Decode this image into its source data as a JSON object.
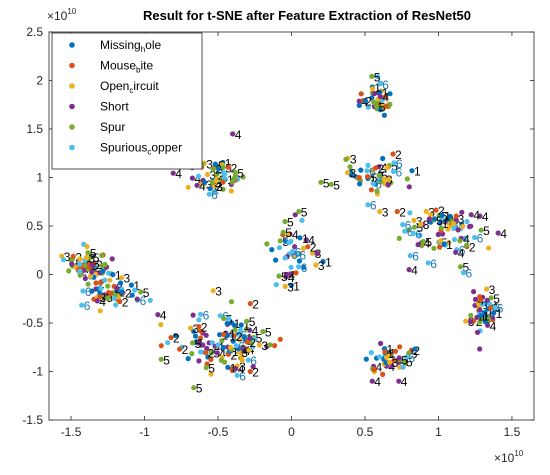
{
  "chart_data": {
    "type": "scatter",
    "title": "Result for t-SNE after Feature Extraction of ResNet50",
    "xlabel": "",
    "ylabel": "",
    "x_exponent": "×10",
    "x_exponent_power": "10",
    "y_exponent": "×10",
    "y_exponent_power": "10",
    "xlim": [
      -1.65,
      1.65
    ],
    "ylim": [
      -1.5,
      2.5
    ],
    "xticks": [
      -1.5,
      -1,
      -0.5,
      0,
      0.5,
      1,
      1.5
    ],
    "xtick_labels": [
      "-1.5",
      "-1",
      "-0.5",
      "0",
      "0.5",
      "1",
      "1.5"
    ],
    "yticks": [
      -1.5,
      -1,
      -0.5,
      0,
      0.5,
      1,
      1.5,
      2,
      2.5
    ],
    "ytick_labels": [
      "-1.5",
      "-1",
      "-0.5",
      "0",
      "0.5",
      "1",
      "1.5",
      "2",
      "2.5"
    ],
    "grid": false,
    "legend_position": "top-left",
    "series": [
      {
        "name_main": "Missing",
        "name_sub": "h",
        "name_rest": "ole",
        "color": "#0072BD",
        "label": "1"
      },
      {
        "name_main": "Mouse",
        "name_sub": "b",
        "name_rest": "ite",
        "color": "#D95319",
        "label": "2"
      },
      {
        "name_main": "Open",
        "name_sub": "c",
        "name_rest": "ircuit",
        "color": "#EDB120",
        "label": "3"
      },
      {
        "name_main": "Short",
        "name_sub": "",
        "name_rest": "",
        "color": "#7E2F8E",
        "label": "4"
      },
      {
        "name_main": "Spur",
        "name_sub": "",
        "name_rest": "",
        "color": "#77AC30",
        "label": "5"
      },
      {
        "name_main": "Spurious",
        "name_sub": "c",
        "name_rest": "opper",
        "color": "#4DBEEE",
        "label": "6"
      }
    ],
    "clusters": [
      {
        "cx": -1.37,
        "cy": 0.1,
        "sx": 0.08,
        "sy": 0.08,
        "n": 60
      },
      {
        "cx": -1.22,
        "cy": -0.18,
        "sx": 0.09,
        "sy": 0.08,
        "n": 50
      },
      {
        "cx": -0.5,
        "cy": -0.7,
        "sx": 0.16,
        "sy": 0.14,
        "n": 110
      },
      {
        "cx": -0.52,
        "cy": 1.0,
        "sx": 0.1,
        "sy": 0.09,
        "n": 55
      },
      {
        "cx": 0.0,
        "cy": 0.25,
        "sx": 0.07,
        "sy": 0.2,
        "n": 45
      },
      {
        "cx": 0.57,
        "cy": 1.8,
        "sx": 0.06,
        "sy": 0.09,
        "n": 40
      },
      {
        "cx": 0.58,
        "cy": 1.0,
        "sx": 0.1,
        "sy": 0.1,
        "n": 45
      },
      {
        "cx": 1.05,
        "cy": 0.45,
        "sx": 0.14,
        "sy": 0.12,
        "n": 75
      },
      {
        "cx": 1.3,
        "cy": -0.4,
        "sx": 0.06,
        "sy": 0.13,
        "n": 45
      },
      {
        "cx": 0.67,
        "cy": -0.85,
        "sx": 0.08,
        "sy": 0.08,
        "n": 40
      }
    ],
    "outliers": [
      {
        "x": -0.4,
        "y": 1.45,
        "label": "4"
      },
      {
        "x": -0.82,
        "y": -0.65,
        "label": "2"
      },
      {
        "x": 0.05,
        "y": 0.65,
        "label": "5"
      },
      {
        "x": 0.52,
        "y": 0.72,
        "label": "6"
      },
      {
        "x": 0.6,
        "y": 0.65,
        "label": "3"
      },
      {
        "x": 0.72,
        "y": 0.65,
        "label": "2"
      },
      {
        "x": 0.82,
        "y": 1.07,
        "label": "1"
      },
      {
        "x": 0.8,
        "y": 0.05,
        "label": "4"
      },
      {
        "x": 0.93,
        "y": 0.12,
        "label": "6"
      },
      {
        "x": 0.88,
        "y": 0.52,
        "label": "3"
      },
      {
        "x": 1.15,
        "y": 0.08,
        "label": "5"
      },
      {
        "x": 1.17,
        "y": 0.02,
        "label": "6"
      },
      {
        "x": 0.55,
        "y": -1.1,
        "label": "4"
      },
      {
        "x": 0.73,
        "y": -1.1,
        "label": "4"
      },
      {
        "x": -0.38,
        "y": -0.97,
        "label": "4"
      },
      {
        "x": -0.28,
        "y": -1.0,
        "label": "2"
      },
      {
        "x": 0.2,
        "y": 0.95,
        "label": "5"
      },
      {
        "x": 0.27,
        "y": 0.93,
        "label": "5"
      },
      {
        "x": -0.28,
        "y": -0.3,
        "label": "2"
      }
    ]
  }
}
